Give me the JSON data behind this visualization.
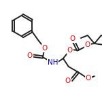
{
  "bond_color": "#222222",
  "atom_colors": {
    "O": "#ee0000",
    "N": "#0000cc"
  },
  "line_width": 1.4,
  "figsize": [
    1.5,
    1.5
  ],
  "dpi": 100
}
